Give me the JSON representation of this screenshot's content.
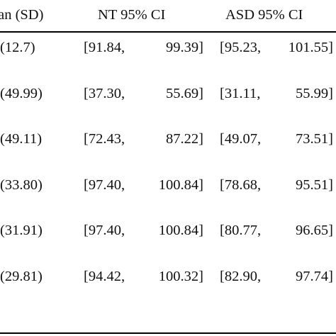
{
  "table": {
    "headers": [
      "ean (SD)",
      "NT 95% CI",
      "ASD 95% CI"
    ],
    "rows": [
      {
        "sd": "(12.7)",
        "nt_lo": "[91.84,",
        "nt_hi": "99.39]",
        "asd_lo": "[95.23,",
        "asd_hi": "101.55]"
      },
      {
        "sd": "(49.99)",
        "nt_lo": "[37.30,",
        "nt_hi": "55.69]",
        "asd_lo": "[31.11,",
        "asd_hi": "55.99]"
      },
      {
        "sd": "(49.11)",
        "nt_lo": "[72.43,",
        "nt_hi": "87.22]",
        "asd_lo": "[49.07,",
        "asd_hi": "73.51]"
      },
      {
        "sd": "(33.80)",
        "nt_lo": "[97.40,",
        "nt_hi": "100.84]",
        "asd_lo": "[78.68,",
        "asd_hi": "95.51]"
      },
      {
        "sd": "(31.91)",
        "nt_lo": "[97.40,",
        "nt_hi": "100.84]",
        "asd_lo": "[80.77,",
        "asd_hi": "96.65]"
      },
      {
        "sd": "(29.81)",
        "nt_lo": "[94.42,",
        "nt_hi": "100.32]",
        "asd_lo": "[82.90,",
        "asd_hi": "97.74]"
      }
    ]
  }
}
